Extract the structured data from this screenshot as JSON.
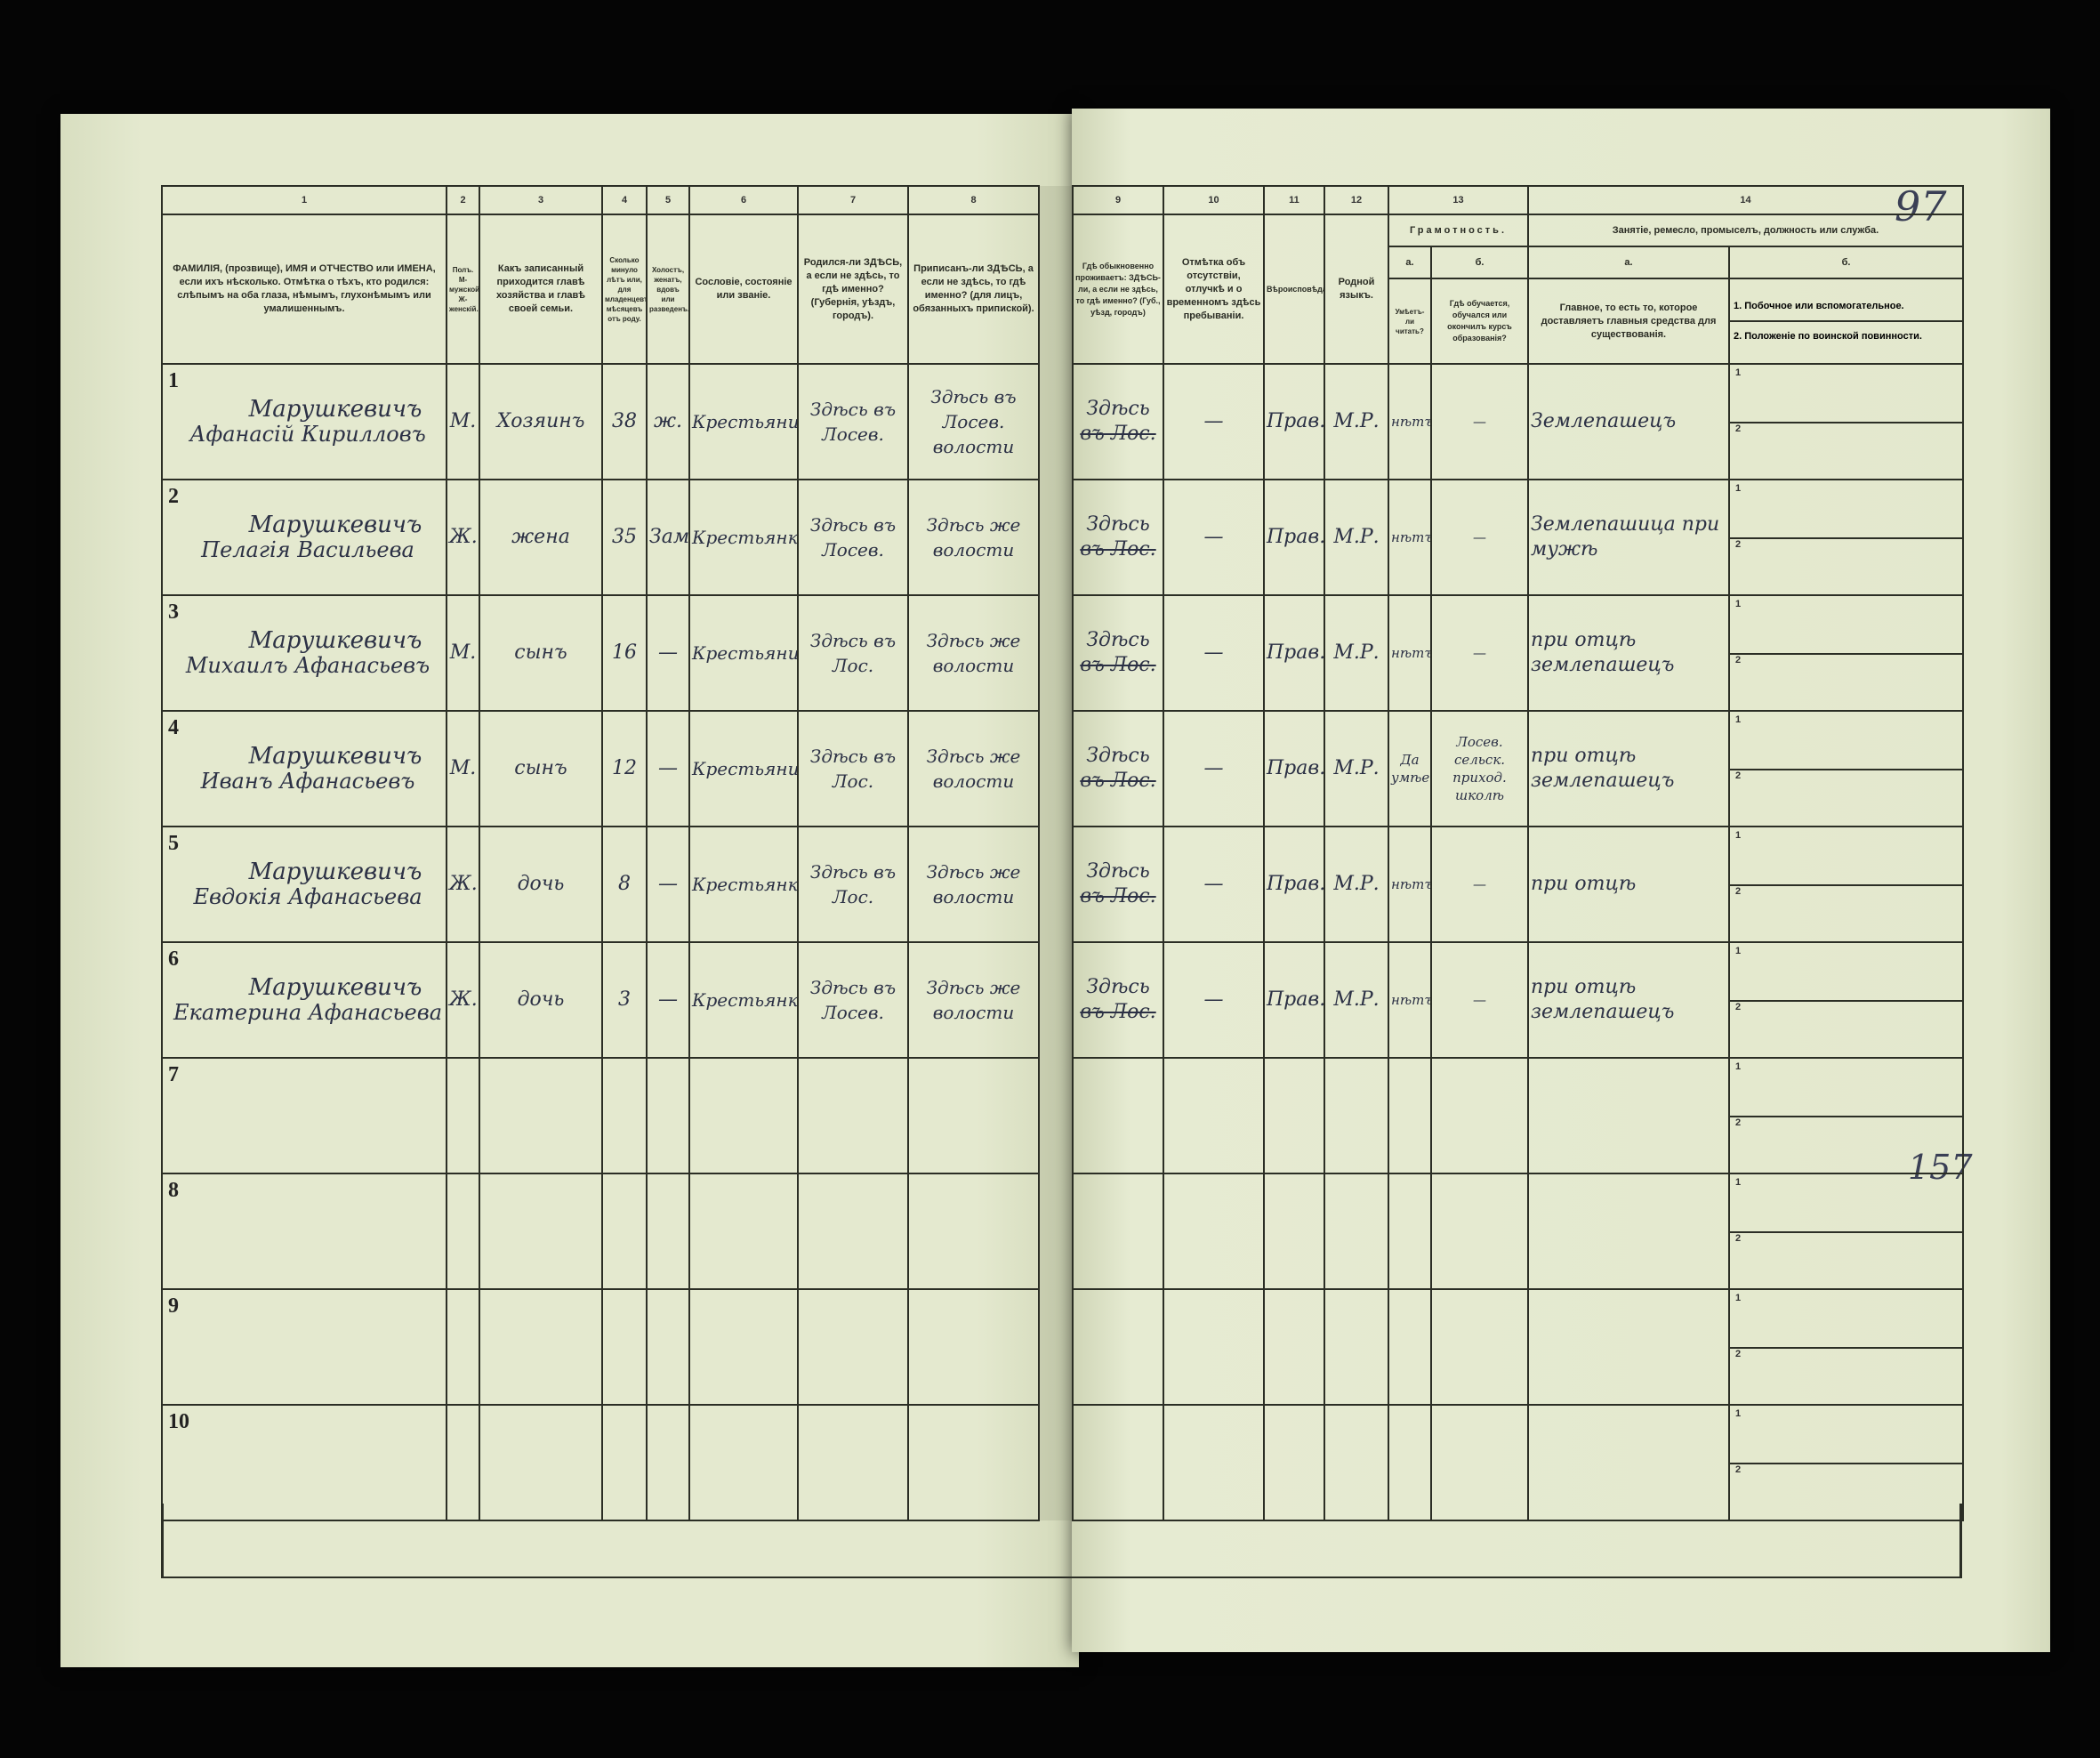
{
  "document": {
    "page_marks": {
      "top_right": "97",
      "right_margin": "157"
    },
    "column_numbers": [
      "1",
      "2",
      "3",
      "4",
      "5",
      "6",
      "7",
      "8",
      "9",
      "10",
      "11",
      "12",
      "13",
      "14"
    ],
    "headers": {
      "c1": "ФАМИЛІЯ, (прозвище), ИМЯ и ОТЧЕСТВО или ИМЕНА, если ихъ нѣсколько. Отмѣтка о тѣхъ, кто родился: слѣпымъ на оба глаза, нѣмымъ, глухонѣмымъ или умалишеннымъ.",
      "c2": "Полъ. М-мужской. Ж-женскій.",
      "c3": "Какъ записанный приходится главѣ хозяйства и главѣ своей семьи.",
      "c4": "Сколько минуло лѣтъ или, для младенцевъ, мѣсяцевъ отъ роду.",
      "c5": "Холостъ, женатъ, вдовъ или разведенъ.",
      "c6": "Сословіе, состояніе или званіе.",
      "c7": "Родился-ли ЗДѢСЬ, а если не здѣсь, то гдѣ именно? (Губернія, уѣздъ, городъ).",
      "c8": "Приписанъ-ли ЗДѢСЬ, а если не здѣсь, то гдѣ именно? (для лицъ, обязанныхъ припиской).",
      "c9": "Гдѣ обыкновенно проживаетъ: ЗДѢСЬ-ли, а если не здѣсь, то гдѣ именно? (Губ., уѣзд, городъ)",
      "c10": "Отмѣтка объ отсутствіи, отлучкѣ и о временномъ здѣсь пребываніи.",
      "c11": "Вѣроисповѣданіе.",
      "c12": "Родной языкъ.",
      "c13": "Грамотность.",
      "c13a_letter": "а.",
      "c13b_letter": "б.",
      "c13a": "Умѣетъ-ли читать?",
      "c13b": "Гдѣ обучается, обучался или окончилъ курсъ образованія?",
      "c14": "Занятіе, ремесло, промыселъ, должность или служба.",
      "c14a_letter": "а.",
      "c14b_letter": "б.",
      "c14a": "Главное, то есть то, которое доставляетъ главныя средства для существованія.",
      "c14b_1": "1. Побочное или вспомогательное.",
      "c14b_2": "2. Положеніе по воинской повинности."
    },
    "sub_labels": [
      "1",
      "2"
    ],
    "rows": [
      {
        "num": "1",
        "surname": "Марушкевичъ",
        "given": "Афанасій Кирилловъ",
        "sex": "М.",
        "relation": "Хозяинъ",
        "age": "38",
        "marital": "ж.",
        "estate": "Крестьянинъ",
        "born": "Здѣсь въ Лосев.",
        "registered": "Здѣсь въ Лосев. волости",
        "residence": "Здѣсь",
        "residence_struck": "въ Лос.",
        "absence": "—",
        "religion": "Прав.",
        "language": "М.Р.",
        "literate": "нѣтъ",
        "education": "—",
        "occupation": "Землепашецъ"
      },
      {
        "num": "2",
        "surname": "Марушкевичъ",
        "given": "Пелагія Васильева",
        "sex": "Ж.",
        "relation": "жена",
        "age": "35",
        "marital": "Зам.",
        "estate": "Крестьянка",
        "born": "Здѣсь въ Лосев.",
        "registered": "Здѣсь же волости",
        "residence": "Здѣсь",
        "residence_struck": "въ Лос.",
        "absence": "—",
        "religion": "Прав.",
        "language": "М.Р.",
        "literate": "нѣтъ",
        "education": "—",
        "occupation": "Землепашица при мужѣ"
      },
      {
        "num": "3",
        "surname": "Марушкевичъ",
        "given": "Михаилъ Афанасьевъ",
        "sex": "М.",
        "relation": "сынъ",
        "age": "16",
        "marital": "—",
        "estate": "Крестьянинъ",
        "born": "Здѣсь въ Лос.",
        "registered": "Здѣсь же волости",
        "residence": "Здѣсь",
        "residence_struck": "въ Лос.",
        "absence": "—",
        "religion": "Прав.",
        "language": "М.Р.",
        "literate": "нѣтъ",
        "education": "—",
        "occupation": "при отцѣ землепашецъ"
      },
      {
        "num": "4",
        "surname": "Марушкевичъ",
        "given": "Иванъ Афанасьевъ",
        "sex": "М.",
        "relation": "сынъ",
        "age": "12",
        "marital": "—",
        "estate": "Крестьянинъ",
        "born": "Здѣсь въ Лос.",
        "registered": "Здѣсь же волости",
        "residence": "Здѣсь",
        "residence_struck": "въ Лос.",
        "absence": "—",
        "religion": "Прав.",
        "language": "М.Р.",
        "literate": "Да умѣетъ",
        "education": "Лосев. сельск. приход. школѣ",
        "occupation": "при отцѣ землепашецъ"
      },
      {
        "num": "5",
        "surname": "Марушкевичъ",
        "given": "Евдокія Афанасьева",
        "sex": "Ж.",
        "relation": "дочь",
        "age": "8",
        "marital": "—",
        "estate": "Крестьянка",
        "born": "Здѣсь въ Лос.",
        "registered": "Здѣсь же волости",
        "residence": "Здѣсь",
        "residence_struck": "въ Лос.",
        "absence": "—",
        "religion": "Прав.",
        "language": "М.Р.",
        "literate": "нѣтъ",
        "education": "—",
        "occupation": "при отцѣ"
      },
      {
        "num": "6",
        "surname": "Марушкевичъ",
        "given": "Екатерина Афанасьева",
        "sex": "Ж.",
        "relation": "дочь",
        "age": "3",
        "marital": "—",
        "estate": "Крестьянка",
        "born": "Здѣсь въ Лосев.",
        "registered": "Здѣсь же волости",
        "residence": "Здѣсь",
        "residence_struck": "въ Лос.",
        "absence": "—",
        "religion": "Прав.",
        "language": "М.Р.",
        "literate": "нѣтъ",
        "education": "—",
        "occupation": "при отцѣ землепашецъ"
      },
      {
        "num": "7"
      },
      {
        "num": "8"
      },
      {
        "num": "9"
      },
      {
        "num": "10"
      }
    ]
  }
}
